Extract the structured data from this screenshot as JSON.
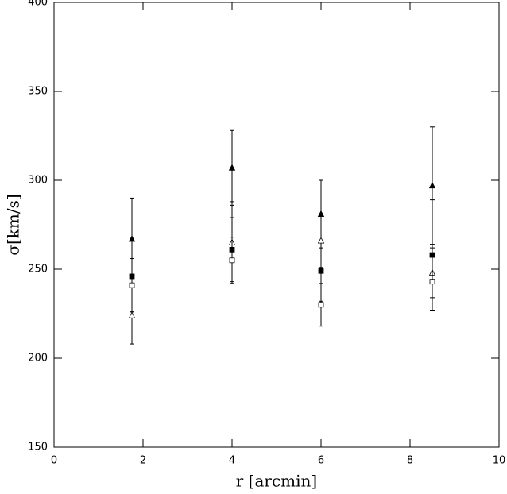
{
  "chart_data": {
    "type": "scatter",
    "x_label": "r [arcmin]",
    "y_label": "σ[km/s]",
    "x": [
      1.75,
      4,
      6,
      8.5
    ],
    "xlim": [
      0,
      10
    ],
    "xticks": [
      0,
      2,
      4,
      6,
      8,
      10
    ],
    "ylim": [
      150,
      400
    ],
    "yticks": [
      150,
      200,
      250,
      300,
      350,
      400
    ],
    "series": [
      {
        "marker": "triangle",
        "filled": true,
        "color": "#000000",
        "values": [
          267,
          307,
          281,
          297
        ],
        "errors": [
          23,
          21,
          19,
          33
        ]
      },
      {
        "marker": "square",
        "filled": true,
        "color": "#000000",
        "values": [
          246,
          261,
          249,
          258
        ],
        "errors": [
          20,
          18,
          17,
          31
        ]
      },
      {
        "marker": "triangle",
        "filled": false,
        "color": "#000000",
        "values": [
          224,
          265,
          266,
          248
        ],
        "errors": [
          16,
          23,
          15,
          14
        ]
      },
      {
        "marker": "square",
        "filled": false,
        "color": "#000000",
        "values": [
          241,
          255,
          230,
          243
        ],
        "errors": [
          15,
          13,
          12,
          16
        ]
      }
    ]
  }
}
